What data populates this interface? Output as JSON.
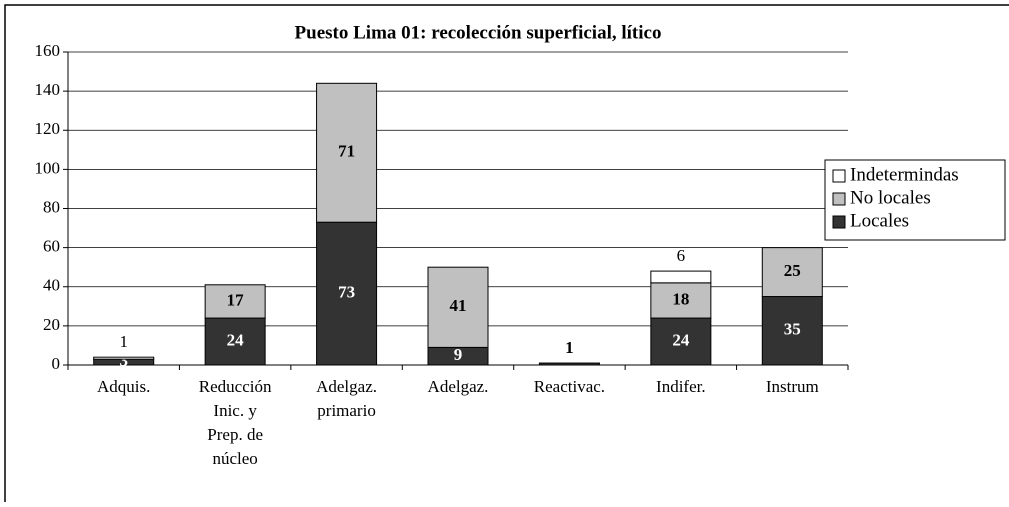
{
  "chart_data": {
    "type": "stacked_bar",
    "title": "Puesto Lima 01: recolección superficial, lítico",
    "categories": [
      "Adquis.",
      "Reducción\nInic. y\nPrep. de\nnúcleo",
      "Adelgaz.\nprimario",
      "Adelgaz.",
      "Reactivac.",
      "Indifer.",
      "Instrum"
    ],
    "series": [
      {
        "name": "Locales",
        "color": "#333333",
        "values": [
          3,
          24,
          73,
          9,
          1,
          24,
          35
        ]
      },
      {
        "name": "No locales",
        "color": "#c0c0c0",
        "values": [
          null,
          17,
          71,
          41,
          null,
          18,
          25
        ]
      },
      {
        "name": "Indetermindas",
        "color": "#ffffff",
        "values": [
          1,
          null,
          null,
          null,
          null,
          6,
          null
        ]
      }
    ],
    "ylim": [
      0,
      160
    ],
    "yticks": [
      0,
      20,
      40,
      60,
      80,
      100,
      120,
      140,
      160
    ],
    "grid": true,
    "legend": "right"
  }
}
